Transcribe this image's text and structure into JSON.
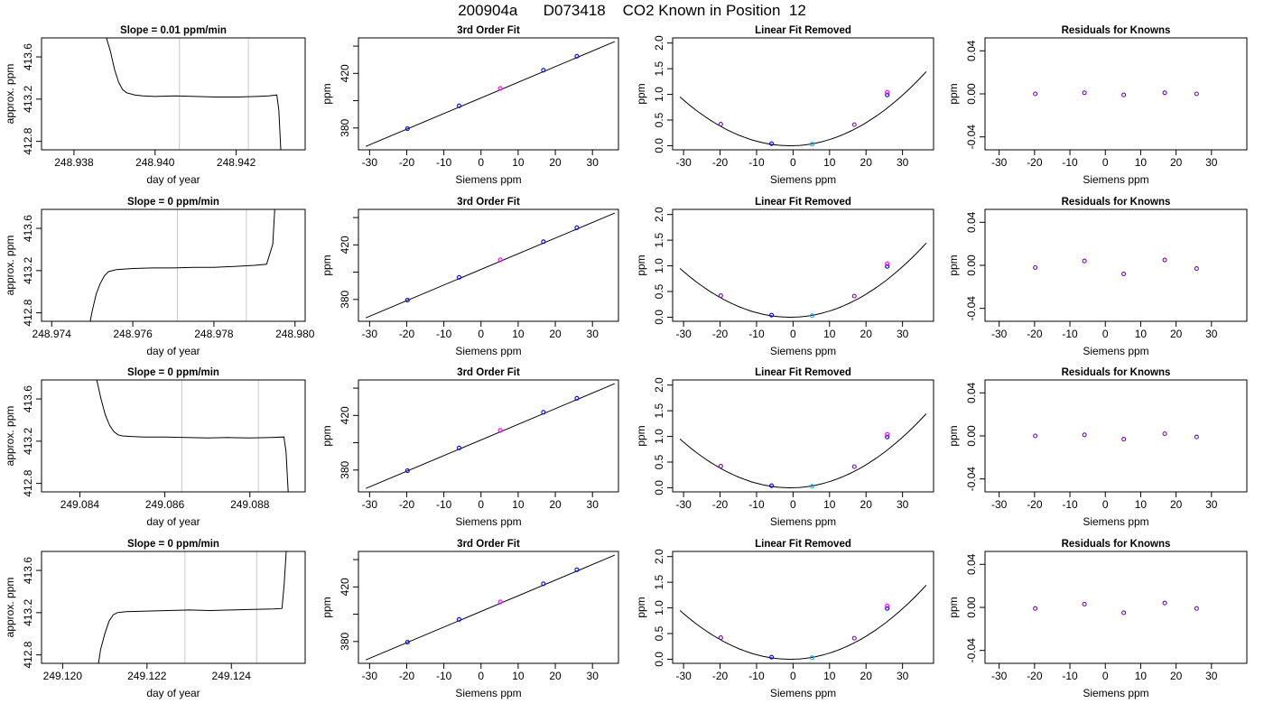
{
  "figure": {
    "title": "200904a      D073418    CO2 Known in Position  12"
  },
  "chart_data": [
    {
      "type": "line",
      "title": "Slope =  0.01  ppm/min",
      "xlabel": "day of year",
      "ylabel": "approx. ppm",
      "xlim": [
        248.9372,
        248.9437
      ],
      "ylim": [
        412.72,
        413.78
      ],
      "xticks": [
        248.938,
        248.94,
        248.942
      ],
      "xtick_labels": [
        "248.938",
        "248.940",
        "248.942"
      ],
      "yticks": [
        412.8,
        413.2,
        413.6
      ],
      "ytick_labels": [
        "412.8",
        "413.2",
        "413.6"
      ],
      "vlines": [
        248.9406,
        248.9423
      ],
      "x": [
        248.9388,
        248.9389,
        248.939,
        248.9391,
        248.9392,
        248.9393,
        248.9395,
        248.9397,
        248.94,
        248.9405,
        248.941,
        248.9415,
        248.942,
        248.9425,
        248.9428,
        248.943,
        248.94305,
        248.9431
      ],
      "y": [
        413.78,
        413.65,
        413.48,
        413.36,
        413.29,
        413.26,
        413.24,
        413.23,
        413.225,
        413.23,
        413.225,
        413.22,
        413.22,
        413.225,
        413.23,
        413.24,
        413.1,
        412.72
      ]
    },
    {
      "type": "line",
      "title": "3rd Order Fit",
      "xlabel": "Siemens ppm",
      "ylabel": "ppm",
      "xlim": [
        -33,
        37
      ],
      "ylim": [
        364,
        446
      ],
      "xticks": [
        -30,
        -20,
        -10,
        0,
        10,
        20,
        30
      ],
      "xtick_labels": [
        "-30",
        "-20",
        "-10",
        "0",
        "10",
        "20",
        "30"
      ],
      "yticks": [
        380,
        400,
        420,
        440
      ],
      "ytick_labels": [
        "380",
        "",
        "420",
        ""
      ],
      "line_x": [
        -31,
        36
      ],
      "line_y": [
        366.5,
        443.3
      ],
      "points": {
        "x": [
          -19.8,
          -5.9,
          5.2,
          16.8,
          25.8
        ],
        "y": [
          379.5,
          396.2,
          409.0,
          422.3,
          432.6
        ],
        "colors": [
          "#0000ff",
          "#0000ff",
          "#ff00ff",
          "#0000ff",
          "#0000ff"
        ]
      }
    },
    {
      "type": "line",
      "title": "Linear Fit Removed",
      "xlabel": "Siemens ppm",
      "ylabel": "ppm",
      "xlim": [
        -33,
        38.5
      ],
      "ylim": [
        -0.08,
        2.1
      ],
      "xticks": [
        -30,
        -20,
        -10,
        0,
        10,
        20,
        30
      ],
      "xtick_labels": [
        "-30",
        "-20",
        "-10",
        "0",
        "10",
        "20",
        "30"
      ],
      "yticks": [
        0,
        0.5,
        1,
        1.5,
        2
      ],
      "ytick_labels": [
        "0.0",
        "0.5",
        "1.0",
        "1.5",
        "2.0"
      ],
      "curve": {
        "a": 0.00104,
        "b": 0.0016,
        "c": 0.0,
        "x_from": -31,
        "x_to": 36.5
      },
      "points": {
        "x": [
          -19.8,
          -5.9,
          5.2,
          16.8,
          25.8,
          25.8
        ],
        "y": [
          0.42,
          0.04,
          0.03,
          0.41,
          0.99,
          1.04
        ],
        "colors": [
          "#6a0dad",
          "#0000ff",
          "#00aaff",
          "#6a0dad",
          "#0000ff",
          "#ff00ff"
        ]
      }
    },
    {
      "type": "scatter",
      "title": "Residuals for Knowns",
      "xlabel": "Siemens ppm",
      "ylabel": "ppm",
      "xlim": [
        -34,
        40
      ],
      "ylim": [
        -0.052,
        0.052
      ],
      "xticks": [
        -30,
        -20,
        -10,
        0,
        10,
        20,
        30
      ],
      "xtick_labels": [
        "-30",
        "-20",
        "-10",
        "0",
        "10",
        "20",
        "30"
      ],
      "yticks": [
        -0.04,
        0,
        0.04
      ],
      "ytick_labels": [
        "-0.04",
        "0.00",
        "0.04"
      ],
      "points": {
        "x": [
          -19.8,
          -5.9,
          5.2,
          16.8,
          25.8
        ],
        "y": [
          0.0,
          0.001,
          -0.001,
          0.001,
          0.0
        ],
        "colors": [
          "#6a0dad",
          "#6a0dad",
          "#6a0dad",
          "#6a0dad",
          "#6a0dad"
        ]
      }
    },
    {
      "type": "line",
      "title": "Slope =  0  ppm/min",
      "xlabel": "day of year",
      "ylabel": "approx. ppm",
      "xlim": [
        248.97375,
        248.98025
      ],
      "ylim": [
        412.72,
        413.78
      ],
      "xticks": [
        248.974,
        248.976,
        248.978,
        248.98
      ],
      "xtick_labels": [
        "248.974",
        "248.976",
        "248.978",
        "248.980"
      ],
      "yticks": [
        412.8,
        413.2,
        413.6
      ],
      "ytick_labels": [
        "412.8",
        "413.2",
        "413.6"
      ],
      "vlines": [
        248.9771,
        248.9788
      ],
      "x": [
        248.97495,
        248.975,
        248.9751,
        248.9752,
        248.9753,
        248.9754,
        248.9756,
        248.976,
        248.9765,
        248.977,
        248.9775,
        248.978,
        248.9785,
        248.979,
        248.9793,
        248.97945,
        248.9795
      ],
      "y": [
        412.72,
        412.82,
        412.98,
        413.08,
        413.15,
        413.19,
        413.21,
        413.22,
        413.225,
        413.225,
        413.23,
        413.23,
        413.24,
        413.25,
        413.26,
        413.45,
        413.78
      ]
    },
    {
      "type": "line",
      "title": "3rd Order Fit",
      "xlabel": "Siemens ppm",
      "ylabel": "ppm",
      "xlim": [
        -33,
        37
      ],
      "ylim": [
        364,
        446
      ],
      "xticks": [
        -30,
        -20,
        -10,
        0,
        10,
        20,
        30
      ],
      "xtick_labels": [
        "-30",
        "-20",
        "-10",
        "0",
        "10",
        "20",
        "30"
      ],
      "yticks": [
        380,
        400,
        420,
        440
      ],
      "ytick_labels": [
        "380",
        "",
        "420",
        ""
      ],
      "line_x": [
        -31,
        36
      ],
      "line_y": [
        366.5,
        443.3
      ],
      "points": {
        "x": [
          -19.8,
          -5.9,
          5.2,
          16.8,
          25.8
        ],
        "y": [
          379.5,
          396.2,
          409.0,
          422.3,
          432.6
        ],
        "colors": [
          "#0000ff",
          "#0000ff",
          "#ff00ff",
          "#0000ff",
          "#0000ff"
        ]
      }
    },
    {
      "type": "line",
      "title": "Linear Fit Removed",
      "xlabel": "Siemens ppm",
      "ylabel": "ppm",
      "xlim": [
        -33,
        38.5
      ],
      "ylim": [
        -0.08,
        2.1
      ],
      "xticks": [
        -30,
        -20,
        -10,
        0,
        10,
        20,
        30
      ],
      "xtick_labels": [
        "-30",
        "-20",
        "-10",
        "0",
        "10",
        "20",
        "30"
      ],
      "yticks": [
        0,
        0.5,
        1,
        1.5,
        2
      ],
      "ytick_labels": [
        "0.0",
        "0.5",
        "1.0",
        "1.5",
        "2.0"
      ],
      "curve": {
        "a": 0.00104,
        "b": 0.0016,
        "c": 0.0,
        "x_from": -31,
        "x_to": 36.5
      },
      "points": {
        "x": [
          -19.8,
          -5.9,
          5.2,
          16.8,
          25.8,
          25.8
        ],
        "y": [
          0.42,
          0.04,
          0.03,
          0.41,
          0.99,
          1.04
        ],
        "colors": [
          "#6a0dad",
          "#0000ff",
          "#00aaff",
          "#6a0dad",
          "#0000ff",
          "#ff00ff"
        ]
      }
    },
    {
      "type": "scatter",
      "title": "Residuals for Knowns",
      "xlabel": "Siemens ppm",
      "ylabel": "ppm",
      "xlim": [
        -34,
        40
      ],
      "ylim": [
        -0.052,
        0.052
      ],
      "xticks": [
        -30,
        -20,
        -10,
        0,
        10,
        20,
        30
      ],
      "xtick_labels": [
        "-30",
        "-20",
        "-10",
        "0",
        "10",
        "20",
        "30"
      ],
      "yticks": [
        -0.04,
        0,
        0.04
      ],
      "ytick_labels": [
        "-0.04",
        "0.00",
        "0.04"
      ],
      "points": {
        "x": [
          -19.8,
          -5.9,
          5.2,
          16.8,
          25.8
        ],
        "y": [
          -0.002,
          0.004,
          -0.008,
          0.005,
          -0.003
        ],
        "colors": [
          "#6a0dad",
          "#6a0dad",
          "#6a0dad",
          "#6a0dad",
          "#6a0dad"
        ]
      }
    },
    {
      "type": "line",
      "title": "Slope =  0  ppm/min",
      "xlabel": "day of year",
      "ylabel": "approx. ppm",
      "xlim": [
        249.0831,
        249.0893
      ],
      "ylim": [
        412.72,
        413.78
      ],
      "xticks": [
        249.084,
        249.086,
        249.088
      ],
      "xtick_labels": [
        "249.084",
        "249.086",
        "249.088"
      ],
      "yticks": [
        412.8,
        413.2,
        413.6
      ],
      "ytick_labels": [
        "412.8",
        "413.2",
        "413.6"
      ],
      "vlines": [
        249.0864,
        249.0882
      ],
      "x": [
        249.0844,
        249.0845,
        249.0846,
        249.0847,
        249.0848,
        249.0849,
        249.085,
        249.0852,
        249.0855,
        249.086,
        249.0865,
        249.087,
        249.0875,
        249.088,
        249.0885,
        249.0888,
        249.08885,
        249.0889
      ],
      "y": [
        413.78,
        413.6,
        413.45,
        413.35,
        413.29,
        413.26,
        413.25,
        413.245,
        413.24,
        413.24,
        413.235,
        413.23,
        413.235,
        413.23,
        413.235,
        413.24,
        413.1,
        412.72
      ]
    },
    {
      "type": "line",
      "title": "3rd Order Fit",
      "xlabel": "Siemens ppm",
      "ylabel": "ppm",
      "xlim": [
        -33,
        37
      ],
      "ylim": [
        364,
        446
      ],
      "xticks": [
        -30,
        -20,
        -10,
        0,
        10,
        20,
        30
      ],
      "xtick_labels": [
        "-30",
        "-20",
        "-10",
        "0",
        "10",
        "20",
        "30"
      ],
      "yticks": [
        380,
        400,
        420,
        440
      ],
      "ytick_labels": [
        "380",
        "",
        "420",
        ""
      ],
      "line_x": [
        -31,
        36
      ],
      "line_y": [
        366.5,
        443.3
      ],
      "points": {
        "x": [
          -19.8,
          -5.9,
          5.2,
          16.8,
          25.8
        ],
        "y": [
          379.5,
          396.2,
          409.0,
          422.3,
          432.6
        ],
        "colors": [
          "#0000ff",
          "#0000ff",
          "#ff00ff",
          "#0000ff",
          "#0000ff"
        ]
      }
    },
    {
      "type": "line",
      "title": "Linear Fit Removed",
      "xlabel": "Siemens ppm",
      "ylabel": "ppm",
      "xlim": [
        -33,
        38.5
      ],
      "ylim": [
        -0.08,
        2.1
      ],
      "xticks": [
        -30,
        -20,
        -10,
        0,
        10,
        20,
        30
      ],
      "xtick_labels": [
        "-30",
        "-20",
        "-10",
        "0",
        "10",
        "20",
        "30"
      ],
      "yticks": [
        0,
        0.5,
        1,
        1.5,
        2
      ],
      "ytick_labels": [
        "0.0",
        "0.5",
        "1.0",
        "1.5",
        "2.0"
      ],
      "curve": {
        "a": 0.00104,
        "b": 0.0016,
        "c": 0.0,
        "x_from": -31,
        "x_to": 36.5
      },
      "points": {
        "x": [
          -19.8,
          -5.9,
          5.2,
          16.8,
          25.8,
          25.8
        ],
        "y": [
          0.42,
          0.04,
          0.03,
          0.41,
          0.99,
          1.04
        ],
        "colors": [
          "#6a0dad",
          "#0000ff",
          "#00aaff",
          "#6a0dad",
          "#0000ff",
          "#ff00ff"
        ]
      }
    },
    {
      "type": "scatter",
      "title": "Residuals for Knowns",
      "xlabel": "Siemens ppm",
      "ylabel": "ppm",
      "xlim": [
        -34,
        40
      ],
      "ylim": [
        -0.052,
        0.052
      ],
      "xticks": [
        -30,
        -20,
        -10,
        0,
        10,
        20,
        30
      ],
      "xtick_labels": [
        "-30",
        "-20",
        "-10",
        "0",
        "10",
        "20",
        "30"
      ],
      "yticks": [
        -0.04,
        0,
        0.04
      ],
      "ytick_labels": [
        "-0.04",
        "0.00",
        "0.04"
      ],
      "points": {
        "x": [
          -19.8,
          -5.9,
          5.2,
          16.8,
          25.8
        ],
        "y": [
          0.0,
          0.001,
          -0.003,
          0.002,
          -0.001
        ],
        "colors": [
          "#6a0dad",
          "#6a0dad",
          "#6a0dad",
          "#6a0dad",
          "#6a0dad"
        ]
      }
    },
    {
      "type": "line",
      "title": "Slope =  0  ppm/min",
      "xlabel": "day of year",
      "ylabel": "approx. ppm",
      "xlim": [
        249.1195,
        249.12575
      ],
      "ylim": [
        412.72,
        413.78
      ],
      "xticks": [
        249.12,
        249.122,
        249.124
      ],
      "xtick_labels": [
        "249.120",
        "249.122",
        "249.124"
      ],
      "yticks": [
        412.8,
        413.2,
        413.6
      ],
      "ytick_labels": [
        "412.8",
        "413.2",
        "413.6"
      ],
      "vlines": [
        249.1229,
        249.1246
      ],
      "x": [
        249.12085,
        249.1209,
        249.121,
        249.1211,
        249.1212,
        249.1213,
        249.1215,
        249.122,
        249.1225,
        249.123,
        249.1235,
        249.124,
        249.1245,
        249.125,
        249.1252,
        249.12525,
        249.1253
      ],
      "y": [
        412.72,
        412.85,
        413.0,
        413.12,
        413.18,
        413.2,
        413.21,
        413.215,
        413.22,
        413.225,
        413.22,
        413.225,
        413.23,
        413.235,
        413.24,
        413.45,
        413.78
      ]
    },
    {
      "type": "line",
      "title": "3rd Order Fit",
      "xlabel": "Siemens ppm",
      "ylabel": "ppm",
      "xlim": [
        -33,
        37
      ],
      "ylim": [
        364,
        446
      ],
      "xticks": [
        -30,
        -20,
        -10,
        0,
        10,
        20,
        30
      ],
      "xtick_labels": [
        "-30",
        "-20",
        "-10",
        "0",
        "10",
        "20",
        "30"
      ],
      "yticks": [
        380,
        400,
        420,
        440
      ],
      "ytick_labels": [
        "380",
        "",
        "420",
        ""
      ],
      "line_x": [
        -31,
        36
      ],
      "line_y": [
        366.5,
        443.3
      ],
      "points": {
        "x": [
          -19.8,
          -5.9,
          5.2,
          16.8,
          25.8
        ],
        "y": [
          379.5,
          396.2,
          409.0,
          422.3,
          432.6
        ],
        "colors": [
          "#0000ff",
          "#0000ff",
          "#ff00ff",
          "#0000ff",
          "#0000ff"
        ]
      }
    },
    {
      "type": "line",
      "title": "Linear Fit Removed",
      "xlabel": "Siemens ppm",
      "ylabel": "ppm",
      "xlim": [
        -33,
        38.5
      ],
      "ylim": [
        -0.08,
        2.1
      ],
      "xticks": [
        -30,
        -20,
        -10,
        0,
        10,
        20,
        30
      ],
      "xtick_labels": [
        "-30",
        "-20",
        "-10",
        "0",
        "10",
        "20",
        "30"
      ],
      "yticks": [
        0,
        0.5,
        1,
        1.5,
        2
      ],
      "ytick_labels": [
        "0.0",
        "0.5",
        "1.0",
        "1.5",
        "2.0"
      ],
      "curve": {
        "a": 0.00104,
        "b": 0.0016,
        "c": 0.0,
        "x_from": -31,
        "x_to": 36.5
      },
      "points": {
        "x": [
          -19.8,
          -5.9,
          5.2,
          16.8,
          25.8,
          25.8
        ],
        "y": [
          0.42,
          0.04,
          0.03,
          0.41,
          0.99,
          1.04
        ],
        "colors": [
          "#6a0dad",
          "#0000ff",
          "#00aaff",
          "#6a0dad",
          "#0000ff",
          "#ff00ff"
        ]
      }
    },
    {
      "type": "scatter",
      "title": "Residuals for Knowns",
      "xlabel": "Siemens ppm",
      "ylabel": "ppm",
      "xlim": [
        -34,
        40
      ],
      "ylim": [
        -0.052,
        0.052
      ],
      "xticks": [
        -30,
        -20,
        -10,
        0,
        10,
        20,
        30
      ],
      "xtick_labels": [
        "-30",
        "-20",
        "-10",
        "0",
        "10",
        "20",
        "30"
      ],
      "yticks": [
        -0.04,
        0,
        0.04
      ],
      "ytick_labels": [
        "-0.04",
        "0.00",
        "0.04"
      ],
      "points": {
        "x": [
          -19.8,
          -5.9,
          5.2,
          16.8,
          25.8
        ],
        "y": [
          -0.001,
          0.003,
          -0.005,
          0.004,
          -0.001
        ],
        "colors": [
          "#6a0dad",
          "#6a0dad",
          "#6a0dad",
          "#6a0dad",
          "#6a0dad"
        ]
      }
    }
  ]
}
